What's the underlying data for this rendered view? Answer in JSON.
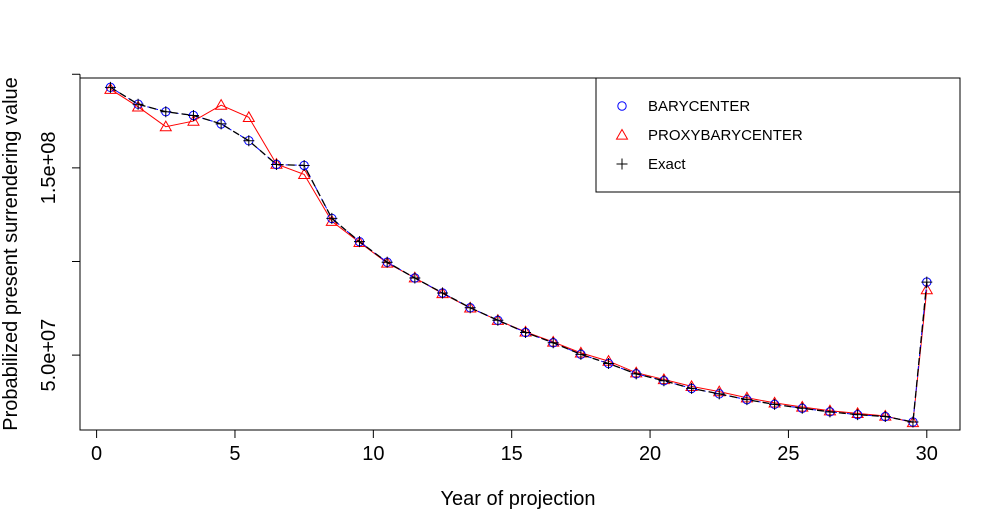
{
  "chart_data": {
    "type": "line",
    "title": "",
    "xlabel": "Year of projection",
    "ylabel": "Probabilized present surrendering value",
    "xlim": [
      -0.6,
      31.2
    ],
    "ylim": [
      10000000,
      198000000
    ],
    "x_ticks": [
      0,
      5,
      10,
      15,
      20,
      25,
      30
    ],
    "x_tick_labels": [
      "0",
      "5",
      "10",
      "15",
      "20",
      "25",
      "30"
    ],
    "y_ticks": [
      50000000,
      150000000
    ],
    "y_tick_labels": [
      "5.0e+07",
      "1.5e+08"
    ],
    "y_minor_ticks": [
      100000000,
      200000000
    ],
    "grid": false,
    "legend_position": "top-right",
    "series": [
      {
        "name": "BARYCENTER",
        "marker": "circle",
        "color": "#0000ff",
        "line": "dashed",
        "x": [
          0.5,
          1.5,
          2.5,
          3.5,
          4.5,
          5.5,
          6.5,
          7.5,
          8.5,
          9.5,
          10.5,
          11.5,
          12.5,
          13.5,
          14.5,
          15.5,
          16.5,
          17.5,
          18.5,
          19.5,
          20.5,
          21.5,
          22.5,
          23.5,
          24.5,
          25.5,
          26.5,
          27.5,
          28.5,
          29.5,
          30
        ],
        "values": [
          193000000,
          184000000,
          180000000,
          178000000,
          173500000,
          164500000,
          151800000,
          151300000,
          123000000,
          110600000,
          99600000,
          91200000,
          83200000,
          75300000,
          68600000,
          62100000,
          56600000,
          50400000,
          45500000,
          40000000,
          36300000,
          32200000,
          29300000,
          26200000,
          23700000,
          21600000,
          19700000,
          18200000,
          17200000,
          14300000,
          89000000
        ]
      },
      {
        "name": "PROXYBARYCENTER",
        "marker": "triangle",
        "color": "#ff0000",
        "line": "solid",
        "x": [
          0.5,
          1.5,
          2.5,
          3.5,
          4.5,
          5.5,
          6.5,
          7.5,
          8.5,
          9.5,
          10.5,
          11.5,
          12.5,
          13.5,
          14.5,
          15.5,
          16.5,
          17.5,
          18.5,
          19.5,
          20.5,
          21.5,
          22.5,
          23.5,
          24.5,
          25.5,
          26.5,
          27.5,
          28.5,
          29.5,
          30
        ],
        "values": [
          192000000,
          182600000,
          172000000,
          175000000,
          183500000,
          177000000,
          152000000,
          146500000,
          121500000,
          110200000,
          99200000,
          91300000,
          82900000,
          75200000,
          68600000,
          62400000,
          57000000,
          51200000,
          46800000,
          40600000,
          37000000,
          33300000,
          30500000,
          27200000,
          24500000,
          22300000,
          20300000,
          18900000,
          17500000,
          14000000,
          85000000
        ]
      },
      {
        "name": "Exact",
        "marker": "plus",
        "color": "#000000",
        "line": "dashed",
        "x": [
          0.5,
          1.5,
          2.5,
          3.5,
          4.5,
          5.5,
          6.5,
          7.5,
          8.5,
          9.5,
          10.5,
          11.5,
          12.5,
          13.5,
          14.5,
          15.5,
          16.5,
          17.5,
          18.5,
          19.5,
          20.5,
          21.5,
          22.5,
          23.5,
          24.5,
          25.5,
          26.5,
          27.5,
          28.5,
          29.5,
          30
        ],
        "values": [
          193000000,
          184000000,
          180000000,
          178000000,
          173500000,
          164500000,
          151800000,
          151300000,
          123000000,
          110600000,
          99600000,
          91200000,
          83200000,
          75300000,
          68600000,
          62100000,
          56600000,
          50400000,
          45500000,
          40000000,
          36300000,
          32200000,
          29300000,
          26200000,
          23700000,
          21600000,
          19700000,
          18200000,
          17200000,
          14300000,
          89000000
        ]
      }
    ]
  }
}
